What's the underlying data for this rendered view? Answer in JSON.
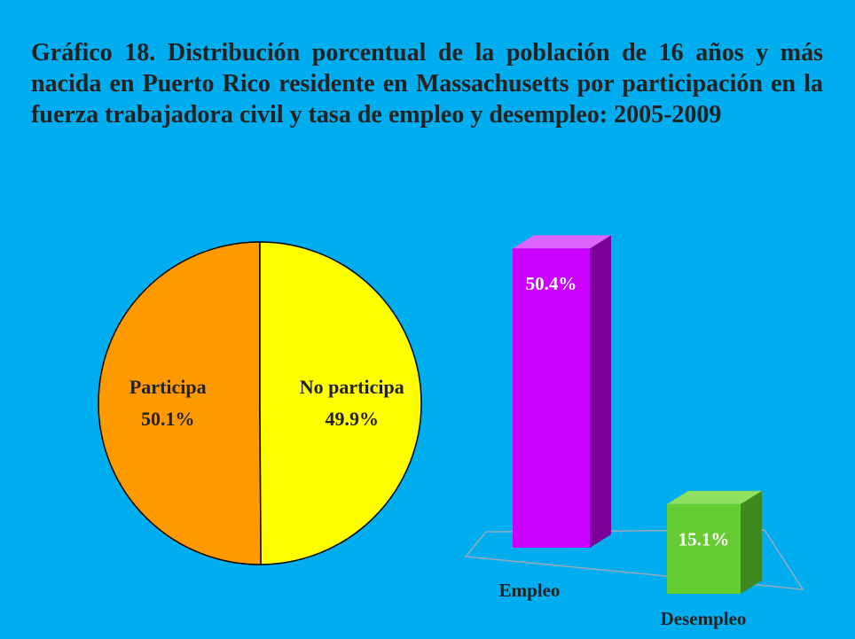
{
  "title": "Gráfico 18. Distribución porcentual de la población de 16 años y más nacida en Puerto Rico residente en Massachusetts por participación en la fuerza trabajadora civil y tasa de empleo y desempleo: 2005-2009",
  "chart_data": [
    {
      "type": "pie",
      "categories": [
        "Participa",
        "No participa"
      ],
      "values": [
        50.1,
        49.9
      ],
      "value_labels": [
        "50.1%",
        "49.9%"
      ],
      "colors": [
        "#FF9900",
        "#FFFF00"
      ]
    },
    {
      "type": "bar3d",
      "categories": [
        "Empleo",
        "Desempleo"
      ],
      "values": [
        50.4,
        15.1
      ],
      "value_labels": [
        "50.4%",
        "15.1%"
      ],
      "colors": [
        "#CC00FF",
        "#66CC33"
      ]
    }
  ]
}
